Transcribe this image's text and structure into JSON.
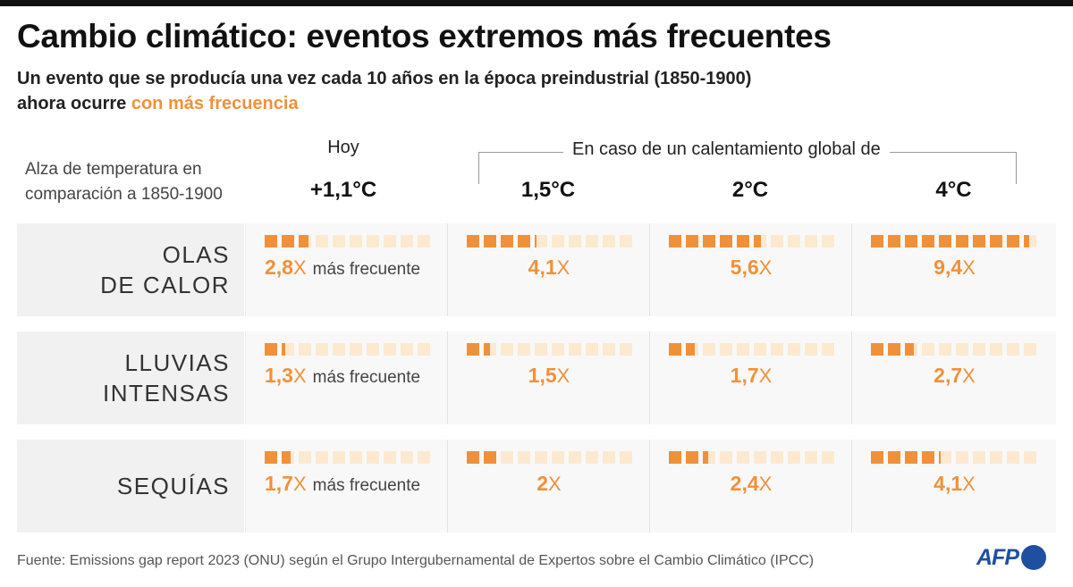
{
  "header": {
    "title": "Cambio climático: eventos extremos más frecuentes",
    "subtitle_part1": "Un evento que se producía ",
    "subtitle_em": "una vez cada 10 años",
    "subtitle_part2": " en la época preindustrial (1850-1900)",
    "subtitle_line2": "ahora ocurre ",
    "subtitle_highlight": "con más frecuencia"
  },
  "axis_label": "Alza de temperatura en comparación a 1850-1900",
  "group_label": "En caso de un calentamiento global de",
  "columns": [
    {
      "head": "Hoy",
      "temp": "+1,1°C"
    },
    {
      "head": "",
      "temp": "1,5°C"
    },
    {
      "head": "",
      "temp": "2°C"
    },
    {
      "head": "",
      "temp": "4°C"
    }
  ],
  "more_label": "más frecuente",
  "x_suffix": "X",
  "colors": {
    "accent": "#f0913a",
    "empty": "#fde9cf",
    "afp_blue": "#1f4fa0"
  },
  "chart_data": {
    "type": "table",
    "title": "Cambio climático: eventos extremos más frecuentes",
    "squares_per_cell": 10,
    "categories": [
      "+1,1°C",
      "1,5°C",
      "2°C",
      "4°C"
    ],
    "series": [
      {
        "name": "OLAS DE CALOR",
        "label_lines": [
          "OLAS",
          "DE CALOR"
        ],
        "values": [
          2.8,
          4.1,
          5.6,
          9.4
        ],
        "labels": [
          "2,8",
          "4,1",
          "5,6",
          "9,4"
        ]
      },
      {
        "name": "LLUVIAS INTENSAS",
        "label_lines": [
          "LLUVIAS",
          "INTENSAS"
        ],
        "values": [
          1.3,
          1.5,
          1.7,
          2.7
        ],
        "labels": [
          "1,3",
          "1,5",
          "1,7",
          "2,7"
        ]
      },
      {
        "name": "SEQUÍAS",
        "label_lines": [
          "SEQUÍAS"
        ],
        "values": [
          1.7,
          2.0,
          2.4,
          4.1
        ],
        "labels": [
          "1,7",
          "2",
          "2,4",
          "4,1"
        ]
      }
    ]
  },
  "footer": {
    "source": "Fuente: Emissions gap report 2023 (ONU) según el Grupo Intergubernamental de Expertos sobre el Cambio Climático (IPCC)",
    "logo": "AFP"
  }
}
